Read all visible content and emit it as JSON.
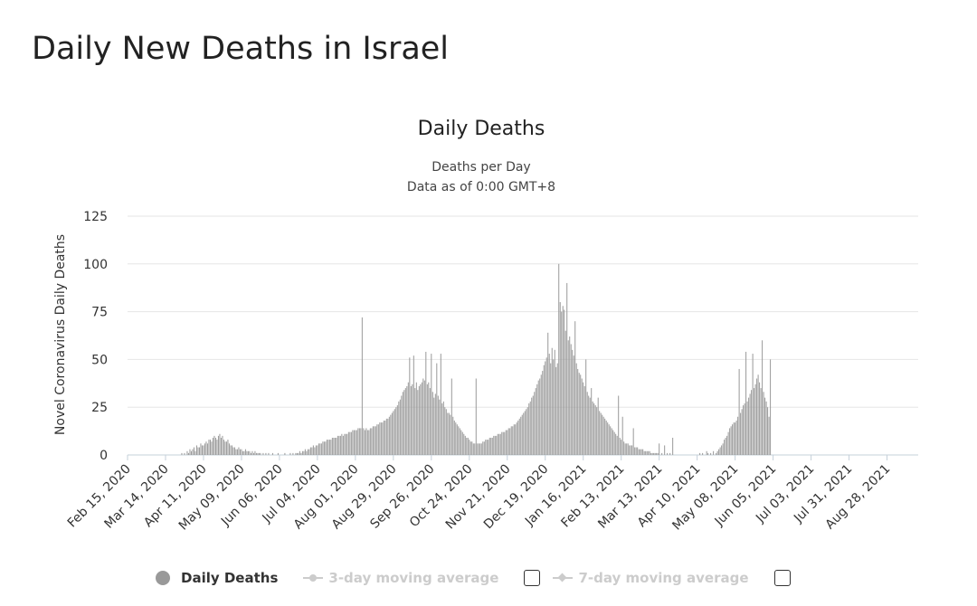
{
  "page": {
    "title": "Daily New Deaths in Israel"
  },
  "chart_data": {
    "type": "bar",
    "title": "Daily Deaths",
    "subtitle_lines": [
      "Deaths per Day",
      "Data as of 0:00 GMT+8"
    ],
    "ylabel": "Novel Coronavirus Daily Deaths",
    "xlabel": "",
    "ylim": [
      0,
      125
    ],
    "yticks": [
      0,
      25,
      50,
      75,
      100,
      125
    ],
    "x_start": "2020-02-15",
    "x_end": "2021-09-20",
    "xtick_labels": [
      "Feb 15, 2020",
      "Mar 14, 2020",
      "Apr 11, 2020",
      "May 09, 2020",
      "Jun 06, 2020",
      "Jul 04, 2020",
      "Aug 01, 2020",
      "Aug 29, 2020",
      "Sep 26, 2020",
      "Oct 24, 2020",
      "Nov 21, 2020",
      "Dec 19, 2020",
      "Jan 16, 2021",
      "Feb 13, 2021",
      "Mar 13, 2021",
      "Apr 10, 2021",
      "May 08, 2021",
      "Jun 05, 2021",
      "Jul 03, 2021",
      "Jul 31, 2021",
      "Aug 28, 2021"
    ],
    "grid": true,
    "bar_color": "#999999",
    "legend_position": "bottom",
    "series": [
      {
        "name": "Daily Deaths",
        "values": [
          0,
          0,
          0,
          0,
          0,
          0,
          0,
          0,
          0,
          0,
          0,
          0,
          0,
          0,
          0,
          0,
          0,
          0,
          0,
          0,
          0,
          0,
          0,
          0,
          0,
          0,
          0,
          0,
          0,
          0,
          0,
          0,
          0,
          0,
          0,
          0,
          0,
          0,
          0,
          0,
          1,
          0,
          1,
          0,
          2,
          1,
          3,
          2,
          3,
          4,
          2,
          5,
          4,
          4,
          6,
          5,
          5,
          6,
          7,
          6,
          8,
          8,
          7,
          9,
          10,
          9,
          8,
          10,
          11,
          9,
          10,
          8,
          7,
          7,
          8,
          6,
          5,
          5,
          4,
          4,
          3,
          3,
          4,
          3,
          3,
          2,
          2,
          3,
          2,
          2,
          2,
          1,
          2,
          1,
          2,
          1,
          1,
          1,
          1,
          0,
          1,
          0,
          1,
          0,
          1,
          0,
          0,
          1,
          0,
          0,
          0,
          1,
          0,
          0,
          0,
          0,
          1,
          0,
          0,
          0,
          1,
          0,
          1,
          0,
          1,
          1,
          1,
          2,
          1,
          2,
          2,
          3,
          2,
          3,
          3,
          4,
          4,
          5,
          4,
          5,
          5,
          6,
          6,
          6,
          7,
          7,
          7,
          8,
          8,
          8,
          8,
          9,
          9,
          9,
          9,
          10,
          10,
          10,
          11,
          10,
          11,
          11,
          11,
          12,
          12,
          12,
          13,
          13,
          13,
          13,
          14,
          14,
          14,
          72,
          14,
          13,
          14,
          13,
          13,
          14,
          14,
          15,
          15,
          15,
          16,
          16,
          17,
          17,
          17,
          18,
          18,
          19,
          19,
          20,
          21,
          22,
          23,
          24,
          25,
          26,
          28,
          29,
          31,
          33,
          34,
          35,
          36,
          38,
          51,
          36,
          37,
          52,
          35,
          38,
          34,
          36,
          37,
          38,
          40,
          39,
          54,
          37,
          38,
          35,
          53,
          33,
          30,
          32,
          48,
          31,
          29,
          53,
          27,
          28,
          25,
          24,
          22,
          22,
          21,
          40,
          20,
          18,
          17,
          16,
          15,
          14,
          13,
          12,
          11,
          10,
          9,
          9,
          8,
          7,
          7,
          6,
          6,
          40,
          6,
          6,
          6,
          6,
          7,
          7,
          8,
          8,
          8,
          9,
          9,
          9,
          10,
          10,
          10,
          11,
          11,
          11,
          12,
          12,
          12,
          13,
          13,
          14,
          14,
          15,
          15,
          16,
          16,
          17,
          18,
          19,
          20,
          21,
          22,
          23,
          24,
          25,
          27,
          28,
          30,
          31,
          33,
          35,
          37,
          39,
          40,
          42,
          44,
          47,
          49,
          51,
          64,
          53,
          48,
          56,
          50,
          55,
          46,
          48,
          100,
          80,
          75,
          78,
          76,
          65,
          90,
          60,
          62,
          58,
          55,
          52,
          70,
          48,
          45,
          43,
          42,
          40,
          38,
          36,
          50,
          33,
          31,
          30,
          35,
          28,
          27,
          26,
          25,
          30,
          23,
          22,
          21,
          20,
          19,
          18,
          17,
          16,
          15,
          14,
          13,
          12,
          11,
          10,
          31,
          9,
          8,
          20,
          7,
          6,
          6,
          6,
          5,
          5,
          5,
          14,
          4,
          4,
          4,
          3,
          3,
          3,
          3,
          2,
          2,
          2,
          2,
          2,
          1,
          1,
          1,
          1,
          1,
          1,
          6,
          0,
          1,
          0,
          5,
          0,
          1,
          0,
          1,
          0,
          9,
          0,
          0,
          0,
          0,
          0,
          0,
          0,
          0,
          0,
          0,
          0,
          0,
          0,
          0,
          0,
          0,
          0,
          0,
          0,
          1,
          0,
          1,
          0,
          0,
          2,
          1,
          0,
          1,
          0,
          2,
          0,
          1,
          2,
          3,
          4,
          5,
          6,
          8,
          9,
          10,
          12,
          14,
          15,
          16,
          17,
          17,
          18,
          20,
          45,
          22,
          24,
          26,
          27,
          54,
          28,
          30,
          32,
          34,
          53,
          35,
          37,
          40,
          42,
          38,
          35,
          60,
          33,
          30,
          28,
          25,
          20,
          50
        ]
      }
    ]
  },
  "legend": {
    "daily_deaths": "Daily Deaths",
    "ma3": "3-day moving average",
    "ma7": "7-day moving average"
  }
}
